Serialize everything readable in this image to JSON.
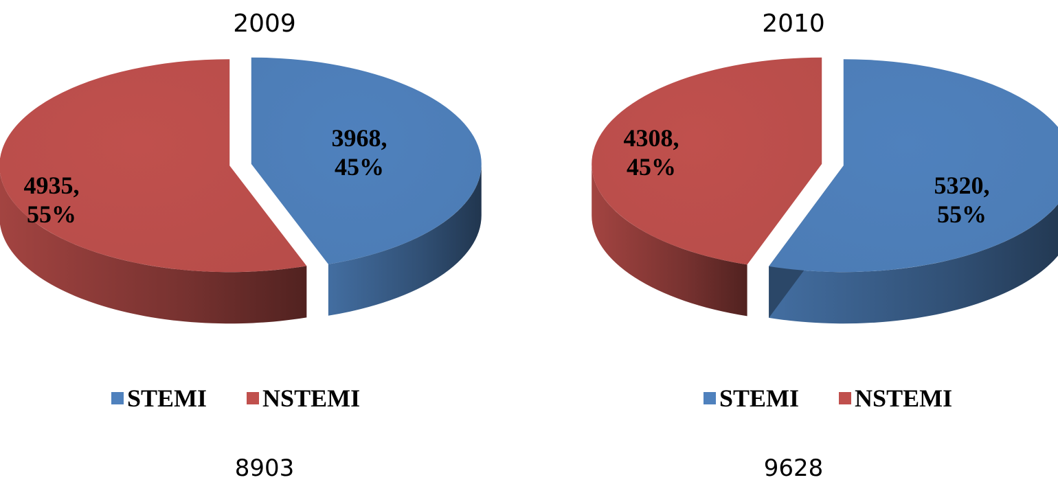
{
  "chart_data": [
    {
      "type": "pie",
      "title": "2009",
      "slices": [
        {
          "name": "STEMI",
          "value": 3968,
          "percent": "45%",
          "color": "#4F81BD"
        },
        {
          "name": "NSTEMI",
          "value": 4935,
          "percent": "55%",
          "color": "#C0504D"
        }
      ],
      "total": "8903",
      "legend": {
        "position": "bottom",
        "items": [
          "STEMI",
          "NSTEMI"
        ]
      }
    },
    {
      "type": "pie",
      "title": "2010",
      "slices": [
        {
          "name": "STEMI",
          "value": 5320,
          "percent": "55%",
          "color": "#4F81BD"
        },
        {
          "name": "NSTEMI",
          "value": 4308,
          "percent": "45%",
          "color": "#C0504D"
        }
      ],
      "total": "9628",
      "legend": {
        "position": "bottom",
        "items": [
          "STEMI",
          "NSTEMI"
        ]
      }
    }
  ],
  "colors": {
    "stemi": "#4F81BD",
    "nstemi": "#C0504D"
  }
}
